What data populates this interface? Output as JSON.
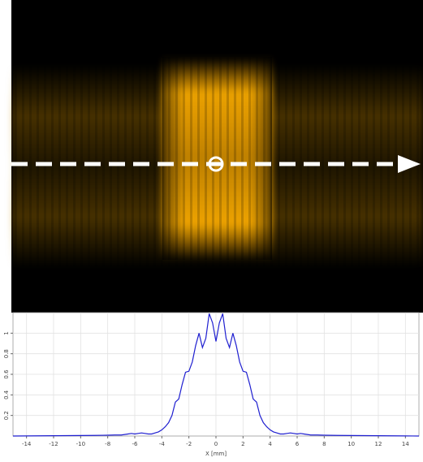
{
  "chart_data": {
    "type": "line",
    "x_label": "X [mm]",
    "color": "#1f1fd0",
    "x": [
      -15,
      -14,
      -13,
      -12,
      -11,
      -10,
      -9,
      -8,
      -7.5,
      -7,
      -6.75,
      -6.5,
      -6.25,
      -6,
      -5.75,
      -5.5,
      -5.25,
      -5,
      -4.75,
      -4.5,
      -4.25,
      -4,
      -3.75,
      -3.5,
      -3.25,
      -3,
      -2.75,
      -2.5,
      -2.25,
      -2,
      -1.75,
      -1.5,
      -1.25,
      -1,
      -0.75,
      -0.5,
      -0.25,
      0,
      0.25,
      0.5,
      0.75,
      1,
      1.25,
      1.5,
      1.75,
      2,
      2.25,
      2.5,
      2.75,
      3,
      3.25,
      3.5,
      3.75,
      4,
      4.25,
      4.5,
      4.75,
      5,
      5.25,
      5.5,
      5.75,
      6,
      6.25,
      6.5,
      6.75,
      7,
      7.5,
      8,
      9,
      10,
      11,
      12,
      13,
      14,
      15
    ],
    "values": [
      0,
      0.001,
      0.002,
      0.003,
      0.004,
      0.005,
      0.006,
      0.008,
      0.01,
      0.01,
      0.015,
      0.02,
      0.025,
      0.02,
      0.025,
      0.03,
      0.025,
      0.02,
      0.02,
      0.03,
      0.04,
      0.06,
      0.09,
      0.13,
      0.2,
      0.33,
      0.36,
      0.5,
      0.62,
      0.63,
      0.72,
      0.88,
      1.0,
      0.86,
      0.95,
      1.19,
      1.1,
      0.92,
      1.1,
      1.19,
      0.95,
      0.86,
      1.0,
      0.88,
      0.72,
      0.63,
      0.62,
      0.5,
      0.36,
      0.33,
      0.2,
      0.13,
      0.09,
      0.06,
      0.04,
      0.03,
      0.02,
      0.02,
      0.025,
      0.03,
      0.025,
      0.02,
      0.025,
      0.02,
      0.015,
      0.01,
      0.01,
      0.008,
      0.006,
      0.005,
      0.004,
      0.003,
      0.002,
      0.001,
      0
    ],
    "xlim": [
      -15,
      15
    ],
    "ylim": [
      0,
      1.2
    ],
    "xticks": [
      -14,
      -12,
      -10,
      -8,
      -6,
      -4,
      -2,
      0,
      2,
      4,
      6,
      8,
      10,
      12,
      14
    ],
    "yticks": [
      0.2,
      0.4,
      0.6,
      0.8,
      1
    ],
    "grid": true
  }
}
